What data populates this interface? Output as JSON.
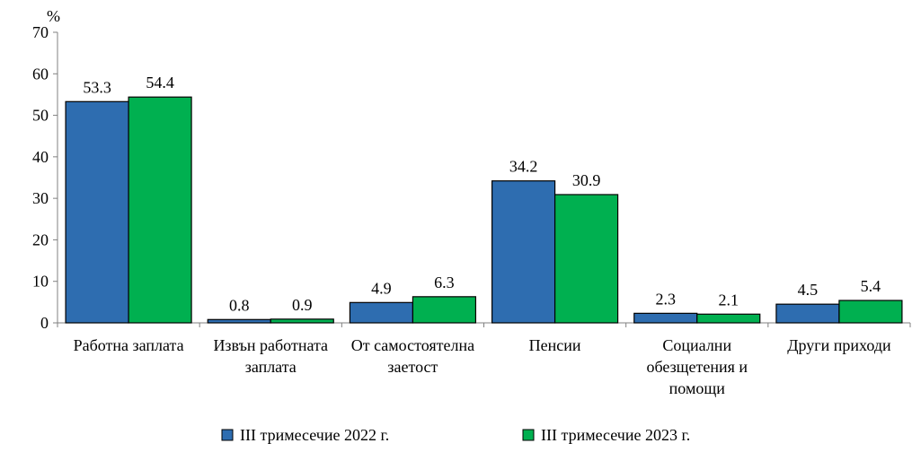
{
  "chart_data": {
    "type": "bar",
    "unit_label": "%",
    "categories": [
      [
        "Работна заплата"
      ],
      [
        "Извън работната",
        "заплата"
      ],
      [
        "От самостоятелна",
        "заетост"
      ],
      [
        "Пенсии"
      ],
      [
        "Социални",
        "обезщетения и",
        "помощи"
      ],
      [
        "Други приходи"
      ]
    ],
    "series": [
      {
        "name": "III тримесечие 2022 г.",
        "color": "#2e6db0",
        "values": [
          53.3,
          0.8,
          4.9,
          34.2,
          2.3,
          4.5
        ]
      },
      {
        "name": "III тримесечие 2023 г.",
        "color": "#00b050",
        "values": [
          54.4,
          0.9,
          6.3,
          30.9,
          2.1,
          5.4
        ]
      }
    ],
    "ylim": [
      0,
      70
    ],
    "yticks": [
      0,
      10,
      20,
      30,
      40,
      50,
      60,
      70
    ],
    "grid": false,
    "legend_position": "bottom"
  }
}
